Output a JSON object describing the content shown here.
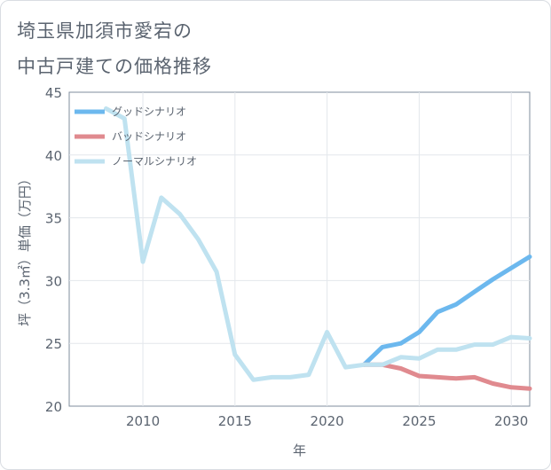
{
  "title_line1": "埼玉県加須市愛宕の",
  "title_line2": "中古戸建ての価格推移",
  "chart_data": {
    "type": "line",
    "xlabel": "年",
    "ylabel": "坪（3.3㎡）単価（万円）",
    "xlim": [
      2006,
      2031
    ],
    "ylim": [
      20,
      45
    ],
    "xticks": [
      2010,
      2015,
      2020,
      2025,
      2030
    ],
    "yticks": [
      20,
      25,
      30,
      35,
      40,
      45
    ],
    "legend_position": "top-left",
    "series": [
      {
        "name": "グッドシナリオ",
        "color": "#6cb8ee",
        "x": [
          2022,
          2023,
          2024,
          2025,
          2026,
          2027,
          2028,
          2029,
          2030,
          2031
        ],
        "y": [
          23.3,
          24.7,
          25.0,
          25.9,
          27.5,
          28.1,
          29.1,
          30.1,
          31.0,
          31.9
        ]
      },
      {
        "name": "バッドシナリオ",
        "color": "#e08a8f",
        "x": [
          2022,
          2023,
          2024,
          2025,
          2026,
          2027,
          2028,
          2029,
          2030,
          2031
        ],
        "y": [
          23.3,
          23.3,
          23.0,
          22.4,
          22.3,
          22.2,
          22.3,
          21.8,
          21.5,
          21.4
        ]
      },
      {
        "name": "ノーマルシナリオ",
        "color": "#bfe2f0",
        "x": [
          2008,
          2009,
          2010,
          2011,
          2012,
          2013,
          2014,
          2015,
          2016,
          2017,
          2018,
          2019,
          2020,
          2021,
          2022,
          2023,
          2024,
          2025,
          2026,
          2027,
          2028,
          2029,
          2030,
          2031
        ],
        "y": [
          43.7,
          42.9,
          31.5,
          36.6,
          35.3,
          33.3,
          30.7,
          24.1,
          22.1,
          22.3,
          22.3,
          22.5,
          25.9,
          23.1,
          23.3,
          23.3,
          23.9,
          23.8,
          24.5,
          24.5,
          24.9,
          24.9,
          25.5,
          25.4
        ]
      }
    ]
  }
}
